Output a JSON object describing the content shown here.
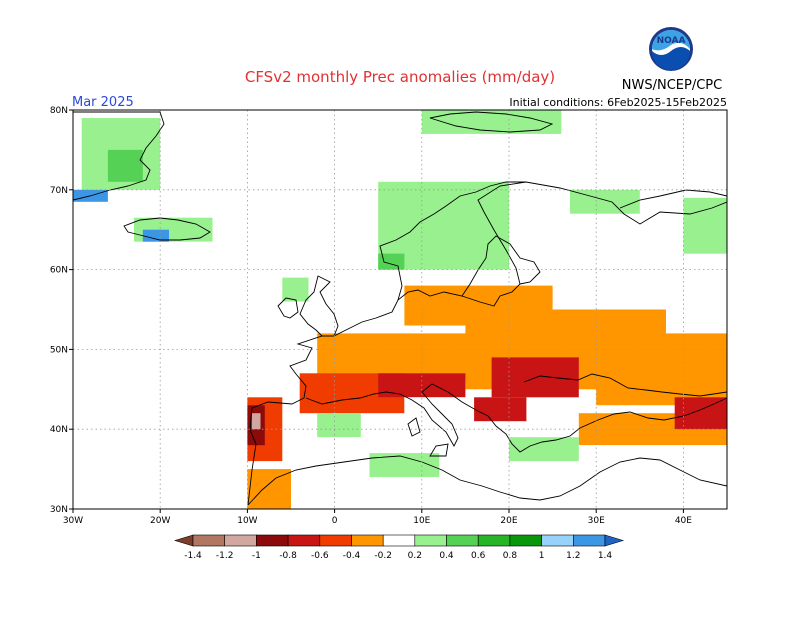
{
  "header": {
    "title": "CFSv2 monthly Prec anomalies (mm/day)",
    "agency": "NWS/NCEP/CPC",
    "logo_text": "NOAA",
    "month": "Mar 2025",
    "initial_conditions": "Initial conditions: 6Feb2025-15Feb2025"
  },
  "chart_data": {
    "type": "heatmap",
    "title": "CFSv2 monthly Prec anomalies (mm/day)",
    "units": "mm/day",
    "xlim": [
      -30,
      45
    ],
    "ylim": [
      30,
      80
    ],
    "x_ticks": [
      {
        "value": -30,
        "label": "30W"
      },
      {
        "value": -20,
        "label": "20W"
      },
      {
        "value": -10,
        "label": "10W"
      },
      {
        "value": 0,
        "label": "0"
      },
      {
        "value": 10,
        "label": "10E"
      },
      {
        "value": 20,
        "label": "20E"
      },
      {
        "value": 30,
        "label": "30E"
      },
      {
        "value": 40,
        "label": "40E"
      }
    ],
    "y_ticks": [
      {
        "value": 30,
        "label": "30N"
      },
      {
        "value": 40,
        "label": "40N"
      },
      {
        "value": 50,
        "label": "50N"
      },
      {
        "value": 60,
        "label": "60N"
      },
      {
        "value": 70,
        "label": "70N"
      },
      {
        "value": 80,
        "label": "80N"
      }
    ],
    "grid": true,
    "colorbar": {
      "labels": [
        "-1.4",
        "-1.2",
        "-1",
        "-0.8",
        "-0.6",
        "-0.4",
        "-0.2",
        "0.2",
        "0.4",
        "0.6",
        "0.8",
        "1",
        "1.2",
        "1.4"
      ],
      "colors": [
        "#7a3e2a",
        "#b27760",
        "#d2a7a0",
        "#8c0a0a",
        "#c81414",
        "#f03c00",
        "#ff9600",
        "#ffffff",
        "#98f08e",
        "#55d255",
        "#27b427",
        "#0a960a",
        "#96d2fa",
        "#3c96e6",
        "#1e64c8"
      ]
    },
    "levels": {
      "orange": "-0.4 to -0.2",
      "orange_red": "-0.6 to -0.4",
      "red": "-0.8 to -0.6",
      "dark_red": "-1 to -0.8",
      "pink": "-1.2 to -1",
      "light_green": "0.2 to 0.4",
      "green": "0.4 to 0.6",
      "blue": "1 to 1.4"
    },
    "regions": [
      {
        "area": "Greenland",
        "lon": [
          -29,
          -20
        ],
        "lat": [
          70,
          79
        ],
        "level": "light_green"
      },
      {
        "area": "Greenland coast",
        "lon": [
          -26,
          -22
        ],
        "lat": [
          71,
          75
        ],
        "level": "green"
      },
      {
        "area": "Greenland south",
        "lon": [
          -30,
          -26
        ],
        "lat": [
          68.5,
          70
        ],
        "level": "blue"
      },
      {
        "area": "Iceland",
        "lon": [
          -23,
          -14
        ],
        "lat": [
          63.5,
          66.5
        ],
        "level": "light_green"
      },
      {
        "area": "Iceland west",
        "lon": [
          -22,
          -19
        ],
        "lat": [
          63.5,
          65
        ],
        "level": "blue"
      },
      {
        "area": "Svalbard",
        "lon": [
          10,
          26
        ],
        "lat": [
          77,
          80
        ],
        "level": "light_green"
      },
      {
        "area": "Norway coast",
        "lon": [
          5,
          20
        ],
        "lat": [
          60,
          71
        ],
        "level": "light_green"
      },
      {
        "area": "Norway southwest",
        "lon": [
          5,
          8
        ],
        "lat": [
          60,
          62
        ],
        "level": "green"
      },
      {
        "area": "Kola / NW Russia",
        "lon": [
          27,
          35
        ],
        "lat": [
          67,
          70
        ],
        "level": "light_green"
      },
      {
        "area": "Novaya Zemlya",
        "lon": [
          40,
          45
        ],
        "lat": [
          62,
          69
        ],
        "level": "light_green"
      },
      {
        "area": "Scotland",
        "lon": [
          -6,
          -3
        ],
        "lat": [
          56,
          59
        ],
        "level": "light_green"
      },
      {
        "area": "Baltic",
        "lon": [
          8,
          25
        ],
        "lat": [
          53,
          58
        ],
        "level": "orange"
      },
      {
        "area": "Central Europe",
        "lon": [
          -2,
          18
        ],
        "lat": [
          46,
          52
        ],
        "level": "orange"
      },
      {
        "area": "Eastern Europe",
        "lon": [
          15,
          38
        ],
        "lat": [
          45,
          55
        ],
        "level": "orange"
      },
      {
        "area": "Southeast Russia",
        "lon": [
          30,
          45
        ],
        "lat": [
          43,
          52
        ],
        "level": "orange"
      },
      {
        "area": "Turkey",
        "lon": [
          28,
          45
        ],
        "lat": [
          38,
          42
        ],
        "level": "orange"
      },
      {
        "area": "France",
        "lon": [
          -4,
          8
        ],
        "lat": [
          42,
          47
        ],
        "level": "orange_red"
      },
      {
        "area": "Alps / Italy north",
        "lon": [
          5,
          15
        ],
        "lat": [
          44,
          47
        ],
        "level": "red"
      },
      {
        "area": "Hungary / Romania",
        "lon": [
          18,
          28
        ],
        "lat": [
          44,
          49
        ],
        "level": "red"
      },
      {
        "area": "Balkans",
        "lon": [
          16,
          22
        ],
        "lat": [
          41,
          44
        ],
        "level": "red"
      },
      {
        "area": "Caucasus",
        "lon": [
          39,
          45
        ],
        "lat": [
          40,
          44
        ],
        "level": "red"
      },
      {
        "area": "Iberia west",
        "lon": [
          -10,
          -6
        ],
        "lat": [
          36,
          44
        ],
        "level": "orange_red"
      },
      {
        "area": "Iberia west core",
        "lon": [
          -10,
          -8
        ],
        "lat": [
          38,
          43
        ],
        "level": "dark_red"
      },
      {
        "area": "Iberia pink",
        "lon": [
          -9.5,
          -8.5
        ],
        "lat": [
          40,
          42
        ],
        "level": "pink"
      },
      {
        "area": "Morocco coast",
        "lon": [
          -10,
          -5
        ],
        "lat": [
          30,
          35
        ],
        "level": "orange"
      },
      {
        "area": "Spain east",
        "lon": [
          -2,
          3
        ],
        "lat": [
          39,
          42
        ],
        "level": "light_green"
      },
      {
        "area": "Tunisia / Algeria",
        "lon": [
          4,
          12
        ],
        "lat": [
          34,
          37
        ],
        "level": "light_green"
      },
      {
        "area": "Greece",
        "lon": [
          20,
          28
        ],
        "lat": [
          36,
          39
        ],
        "level": "light_green"
      }
    ]
  }
}
